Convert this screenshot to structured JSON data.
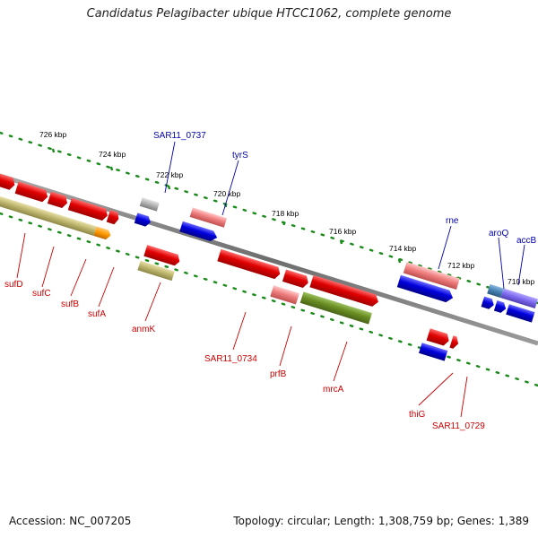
{
  "title": "Candidatus Pelagibacter ubique HTCC1062, complete genome",
  "footer": {
    "accession": "Accession: NC_007205",
    "summary": "Topology: circular; Length: 1,308,759 bp; Genes: 1,389"
  },
  "ticks": [
    "726 kbp",
    "724 kbp",
    "722 kbp",
    "720 kbp",
    "718 kbp",
    "716 kbp",
    "714 kbp",
    "712 kbp",
    "710 kbp"
  ],
  "genes_forward": [
    "SAR11_0737",
    "tyrS",
    "rne",
    "aroQ",
    "accB"
  ],
  "genes_reverse": [
    "sufD",
    "sufC",
    "sufB",
    "sufA",
    "anmK",
    "SAR11_0734",
    "prfB",
    "mrcA",
    "thiG",
    "SAR11_0729"
  ],
  "colors": {
    "cds_red": "#e00000",
    "cds_pink": "#f08080",
    "cds_blue": "#0000dd",
    "cds_khaki": "#c0b870",
    "cds_olive": "#6b8e23",
    "cds_orange": "#ff9900",
    "cds_steel": "#4682b4",
    "cds_purple": "#7b68ee",
    "cds_gray": "#b0b0b0",
    "backbone": "#808080",
    "gc_dots": "#1a8a1a",
    "forward_label": "#0000aa",
    "reverse_label": "#cc0000"
  }
}
